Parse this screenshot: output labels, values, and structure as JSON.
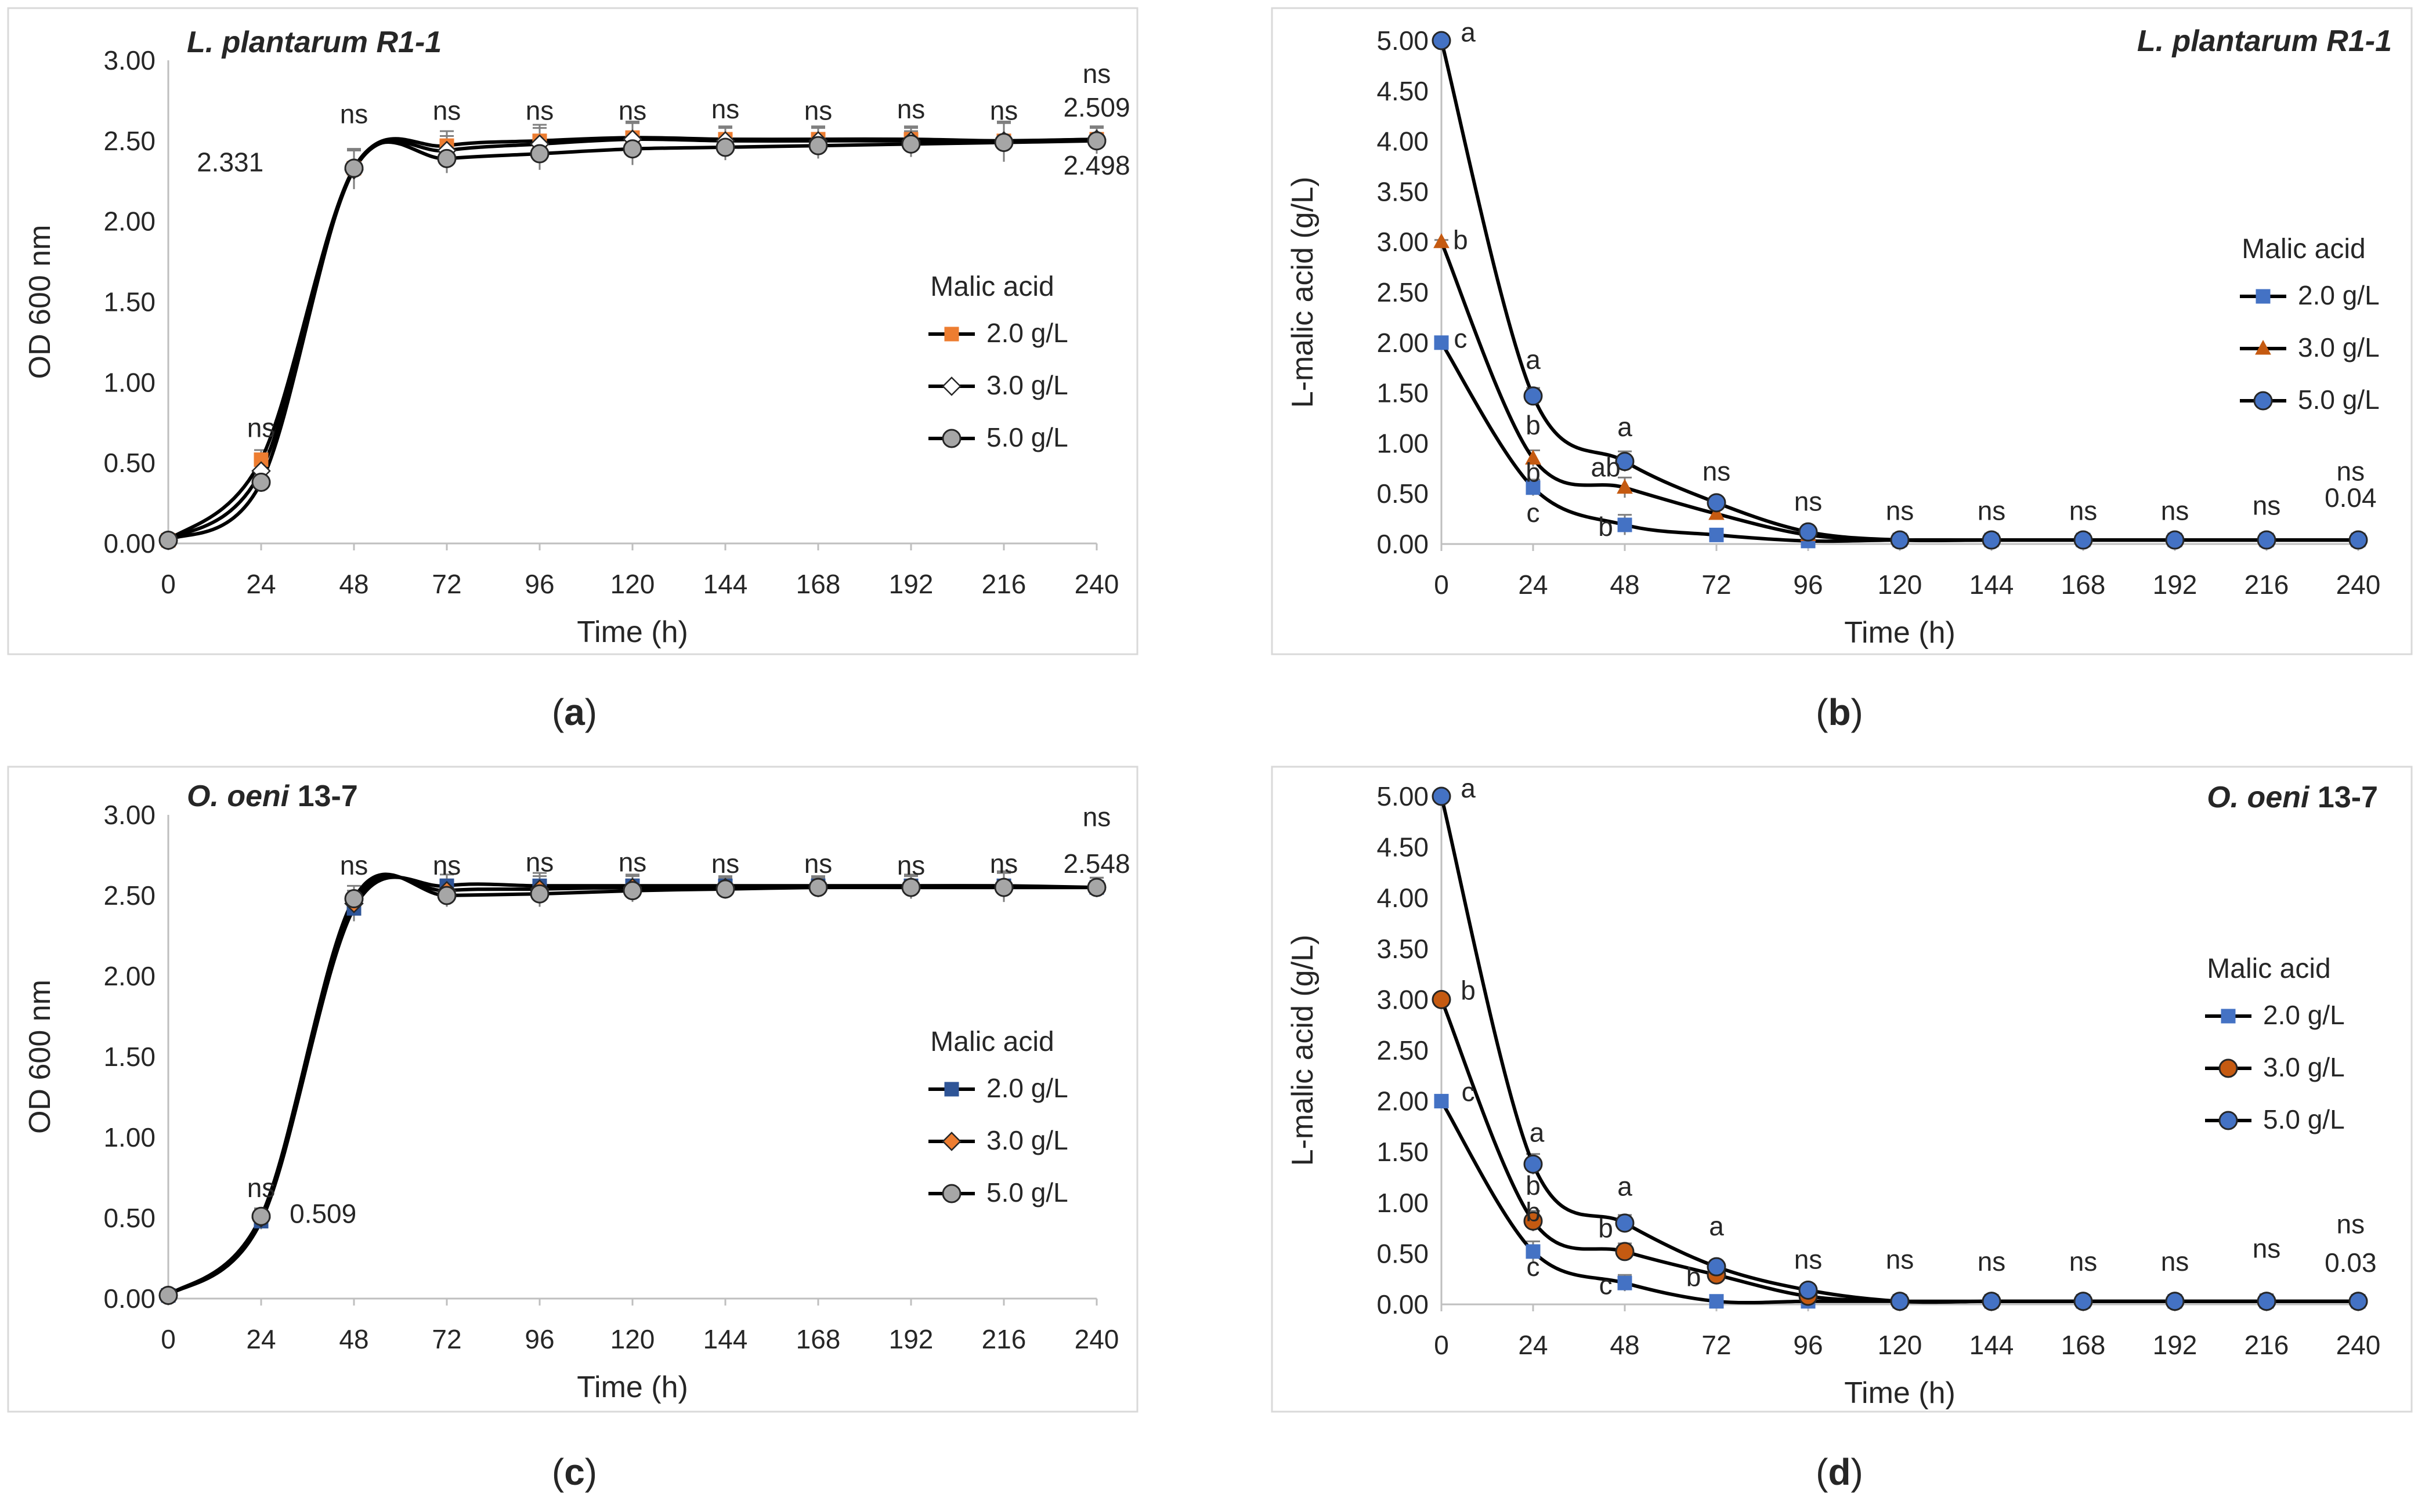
{
  "figure": {
    "background": "#ffffff",
    "frame_color": "#d9d9d9",
    "line_color": "#000000",
    "axis_color": "#bfbfbf"
  },
  "chart_data": [
    {
      "id": "a",
      "type": "line",
      "caption": "a",
      "title_italic": "L. plantarum R1-1",
      "title_rest": "",
      "title_align": "left",
      "xlabel": "Time (h)",
      "ylabel": "OD 600 nm",
      "x": [
        0,
        24,
        48,
        72,
        96,
        120,
        144,
        168,
        192,
        216,
        240
      ],
      "xlim": [
        0,
        240
      ],
      "ylim": [
        0,
        3
      ],
      "ytick_labels": [
        "0.00",
        "0.50",
        "1.00",
        "1.50",
        "2.00",
        "2.50",
        "3.00"
      ],
      "legend_title": "Malic acid",
      "series": [
        {
          "name": "2.0 g/L",
          "marker": "square",
          "color": "#ed7d31",
          "values": [
            0.02,
            0.52,
            2.33,
            2.47,
            2.5,
            2.52,
            2.51,
            2.51,
            2.51,
            2.5,
            2.51
          ]
        },
        {
          "name": "3.0 g/L",
          "marker": "diamond",
          "color": "#ffffff",
          "values": [
            0.02,
            0.45,
            2.32,
            2.44,
            2.48,
            2.51,
            2.5,
            2.5,
            2.5,
            2.5,
            2.51
          ]
        },
        {
          "name": "5.0 g/L",
          "marker": "circle",
          "color": "#a6a6a6",
          "values": [
            0.02,
            0.38,
            2.33,
            2.39,
            2.42,
            2.45,
            2.46,
            2.47,
            2.48,
            2.49,
            2.5
          ]
        }
      ],
      "error": [
        0.01,
        0.06,
        0.12,
        0.09,
        0.1,
        0.1,
        0.08,
        0.08,
        0.08,
        0.12,
        0.08
      ],
      "annotations": [
        {
          "text": "ns",
          "x": 24,
          "y": 0.66
        },
        {
          "text": "ns",
          "x": 48,
          "y": 2.61
        },
        {
          "text": "2.331",
          "x": 16,
          "y": 2.31
        },
        {
          "text": "ns",
          "x": 72,
          "y": 2.63
        },
        {
          "text": "ns",
          "x": 96,
          "y": 2.63
        },
        {
          "text": "ns",
          "x": 120,
          "y": 2.63
        },
        {
          "text": "ns",
          "x": 144,
          "y": 2.64
        },
        {
          "text": "ns",
          "x": 168,
          "y": 2.63
        },
        {
          "text": "ns",
          "x": 192,
          "y": 2.64
        },
        {
          "text": "ns",
          "x": 216,
          "y": 2.63
        },
        {
          "text": "ns",
          "x": 240,
          "y": 2.86
        },
        {
          "text": "2.509",
          "x": 240,
          "y": 2.65
        },
        {
          "text": "2.498",
          "x": 240,
          "y": 2.29
        }
      ]
    },
    {
      "id": "b",
      "type": "line",
      "caption": "b",
      "title_italic": "L. plantarum R1-1",
      "title_rest": "",
      "title_align": "right",
      "xlabel": "Time (h)",
      "ylabel": "L-malic acid (g/L)",
      "x": [
        0,
        24,
        48,
        72,
        96,
        120,
        144,
        168,
        192,
        216,
        240
      ],
      "xlim": [
        0,
        240
      ],
      "ylim": [
        0,
        5
      ],
      "ytick_labels": [
        "0.00",
        "0.50",
        "1.00",
        "1.50",
        "2.00",
        "2.50",
        "3.00",
        "3.50",
        "4.00",
        "4.50",
        "5.00"
      ],
      "legend_title": "Malic acid",
      "series": [
        {
          "name": "2.0 g/L",
          "marker": "square",
          "color": "#4472c4",
          "values": [
            2.0,
            0.56,
            0.19,
            0.09,
            0.03,
            0.04,
            0.04,
            0.04,
            0.04,
            0.04,
            0.04
          ]
        },
        {
          "name": "3.0 g/L",
          "marker": "triangle",
          "color": "#c55a11",
          "values": [
            3.0,
            0.85,
            0.56,
            0.3,
            0.09,
            0.04,
            0.04,
            0.04,
            0.04,
            0.04,
            0.04
          ]
        },
        {
          "name": "5.0 g/L",
          "marker": "circle",
          "color": "#4472c4",
          "values": [
            5.0,
            1.47,
            0.82,
            0.41,
            0.12,
            0.04,
            0.04,
            0.04,
            0.04,
            0.04,
            0.04
          ]
        }
      ],
      "error": [
        0.02,
        0.08,
        0.1,
        0.05,
        0.04,
        0.04,
        0.03,
        0.03,
        0.04,
        0.05,
        0.06
      ],
      "annotations": [
        {
          "text": "a",
          "x": 7,
          "y": 4.99
        },
        {
          "text": "b",
          "x": 5,
          "y": 2.93
        },
        {
          "text": "c",
          "x": 5,
          "y": 1.95
        },
        {
          "text": "a",
          "x": 24,
          "y": 1.74
        },
        {
          "text": "b",
          "x": 24,
          "y": 1.09
        },
        {
          "text": "b",
          "x": 24,
          "y": 0.62
        },
        {
          "text": "c",
          "x": 24,
          "y": 0.22
        },
        {
          "text": "a",
          "x": 48,
          "y": 1.07
        },
        {
          "text": "ab",
          "x": 43,
          "y": 0.67
        },
        {
          "text": "b",
          "x": 43,
          "y": 0.08
        },
        {
          "text": "ns",
          "x": 72,
          "y": 0.63
        },
        {
          "text": "ns",
          "x": 96,
          "y": 0.33
        },
        {
          "text": "ns",
          "x": 120,
          "y": 0.24
        },
        {
          "text": "ns",
          "x": 144,
          "y": 0.24
        },
        {
          "text": "ns",
          "x": 168,
          "y": 0.24
        },
        {
          "text": "ns",
          "x": 192,
          "y": 0.24
        },
        {
          "text": "ns",
          "x": 216,
          "y": 0.29
        },
        {
          "text": "ns",
          "x": 238,
          "y": 0.63
        },
        {
          "text": "0.04",
          "x": 238,
          "y": 0.37
        }
      ]
    },
    {
      "id": "c",
      "type": "line",
      "caption": "c",
      "title_italic": "O. oeni",
      "title_rest": " 13-7",
      "title_align": "left",
      "xlabel": "Time (h)",
      "ylabel": "OD 600 nm",
      "x": [
        0,
        24,
        48,
        72,
        96,
        120,
        144,
        168,
        192,
        216,
        240
      ],
      "xlim": [
        0,
        240
      ],
      "ylim": [
        0,
        3
      ],
      "ytick_labels": [
        "0.00",
        "0.50",
        "1.00",
        "1.50",
        "2.00",
        "2.50",
        "3.00"
      ],
      "legend_title": "Malic acid",
      "series": [
        {
          "name": "2.0 g/L",
          "marker": "square",
          "color": "#2f5597",
          "values": [
            0.02,
            0.48,
            2.42,
            2.56,
            2.56,
            2.56,
            2.56,
            2.56,
            2.56,
            2.56,
            2.55
          ]
        },
        {
          "name": "3.0 g/L",
          "marker": "diamond",
          "color": "#ed7d31",
          "values": [
            0.02,
            0.5,
            2.45,
            2.53,
            2.54,
            2.55,
            2.55,
            2.55,
            2.55,
            2.55,
            2.55
          ]
        },
        {
          "name": "5.0 g/L",
          "marker": "circle",
          "color": "#a6a6a6",
          "values": [
            0.02,
            0.51,
            2.48,
            2.5,
            2.51,
            2.53,
            2.54,
            2.55,
            2.55,
            2.55,
            2.55
          ]
        }
      ],
      "error": [
        0.01,
        0.05,
        0.08,
        0.07,
        0.08,
        0.07,
        0.06,
        0.06,
        0.07,
        0.09,
        0.06
      ],
      "annotations": [
        {
          "text": "ns",
          "x": 24,
          "y": 0.63
        },
        {
          "text": "0.509",
          "x": 40,
          "y": 0.47
        },
        {
          "text": "ns",
          "x": 48,
          "y": 2.63
        },
        {
          "text": "ns",
          "x": 72,
          "y": 2.63
        },
        {
          "text": "ns",
          "x": 96,
          "y": 2.65
        },
        {
          "text": "ns",
          "x": 120,
          "y": 2.65
        },
        {
          "text": "ns",
          "x": 144,
          "y": 2.64
        },
        {
          "text": "ns",
          "x": 168,
          "y": 2.64
        },
        {
          "text": "ns",
          "x": 192,
          "y": 2.63
        },
        {
          "text": "ns",
          "x": 216,
          "y": 2.64
        },
        {
          "text": "ns",
          "x": 240,
          "y": 2.93
        },
        {
          "text": "2.548",
          "x": 240,
          "y": 2.64
        }
      ]
    },
    {
      "id": "d",
      "type": "line",
      "caption": "d",
      "title_italic": "O. oeni",
      "title_rest": " 13-7",
      "title_align": "right",
      "xlabel": "Time (h)",
      "ylabel": "L-malic acid (g/L)",
      "x": [
        0,
        24,
        48,
        72,
        96,
        120,
        144,
        168,
        192,
        216,
        240
      ],
      "xlim": [
        0,
        240
      ],
      "ylim": [
        0,
        5
      ],
      "ytick_labels": [
        "0.00",
        "0.50",
        "1.00",
        "1.50",
        "2.00",
        "2.50",
        "3.00",
        "3.50",
        "4.00",
        "4.50",
        "5.00"
      ],
      "legend_title": "Malic acid",
      "series": [
        {
          "name": "2.0 g/L",
          "marker": "square",
          "color": "#4472c4",
          "values": [
            2.0,
            0.52,
            0.21,
            0.03,
            0.03,
            0.03,
            0.03,
            0.03,
            0.03,
            0.03,
            0.03
          ]
        },
        {
          "name": "3.0 g/L",
          "marker": "circle",
          "color": "#c55a11",
          "values": [
            3.0,
            0.82,
            0.52,
            0.29,
            0.08,
            0.03,
            0.03,
            0.03,
            0.03,
            0.03,
            0.03
          ]
        },
        {
          "name": "5.0 g/L",
          "marker": "circle",
          "color": "#4472c4",
          "values": [
            5.0,
            1.38,
            0.8,
            0.37,
            0.14,
            0.03,
            0.03,
            0.03,
            0.03,
            0.03,
            0.03
          ]
        }
      ],
      "error": [
        0.02,
        0.1,
        0.08,
        0.06,
        0.06,
        0.05,
        0.03,
        0.03,
        0.04,
        0.07,
        0.04
      ],
      "annotations": [
        {
          "text": "a",
          "x": 7,
          "y": 4.99
        },
        {
          "text": "b",
          "x": 7,
          "y": 3.0
        },
        {
          "text": "c",
          "x": 7,
          "y": 2.0
        },
        {
          "text": "a",
          "x": 25,
          "y": 1.6
        },
        {
          "text": "b",
          "x": 24,
          "y": 1.08
        },
        {
          "text": "b",
          "x": 24,
          "y": 0.82
        },
        {
          "text": "c",
          "x": 24,
          "y": 0.28
        },
        {
          "text": "a",
          "x": 48,
          "y": 1.07
        },
        {
          "text": "b",
          "x": 43,
          "y": 0.66
        },
        {
          "text": "c",
          "x": 43,
          "y": 0.1
        },
        {
          "text": "a",
          "x": 72,
          "y": 0.68
        },
        {
          "text": "b",
          "x": 66,
          "y": 0.18
        },
        {
          "text": "ns",
          "x": 96,
          "y": 0.35
        },
        {
          "text": "ns",
          "x": 120,
          "y": 0.35
        },
        {
          "text": "ns",
          "x": 144,
          "y": 0.33
        },
        {
          "text": "ns",
          "x": 168,
          "y": 0.33
        },
        {
          "text": "ns",
          "x": 192,
          "y": 0.33
        },
        {
          "text": "ns",
          "x": 216,
          "y": 0.46
        },
        {
          "text": "ns",
          "x": 238,
          "y": 0.7
        },
        {
          "text": "0.03",
          "x": 238,
          "y": 0.32
        }
      ]
    }
  ]
}
